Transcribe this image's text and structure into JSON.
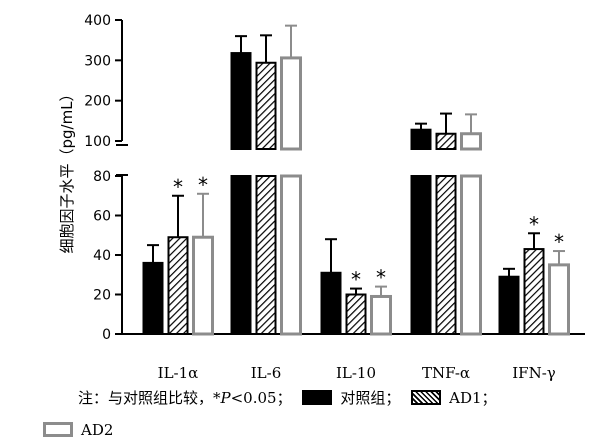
{
  "chart_data": {
    "type": "bar",
    "ylabel": "细胞因子水平（pg/mL）",
    "categories": [
      "IL-1α",
      "IL-6",
      "IL-10",
      "TNF-α",
      "IFN-γ"
    ],
    "y_axis_lower": {
      "range": [
        0,
        80
      ],
      "ticks": [
        "0",
        "20",
        "40",
        "60",
        "80"
      ]
    },
    "y_axis_upper": {
      "range": [
        100,
        400
      ],
      "ticks": [
        "100",
        "200",
        "300",
        "400"
      ]
    },
    "axis_break": true,
    "series": [
      {
        "name": "对照组",
        "color": "#000000",
        "fill": "solid",
        "values": [
          36,
          318,
          31,
          128,
          29
        ],
        "errors": [
          9,
          42,
          17,
          15,
          4
        ]
      },
      {
        "name": "AD1",
        "color": "#000000",
        "fill": "hatched",
        "values": [
          49,
          294,
          20,
          118,
          43
        ],
        "errors": [
          21,
          68,
          3,
          50,
          8
        ]
      },
      {
        "name": "AD2",
        "color": "#8c8c8c",
        "fill": "outline",
        "values": [
          49,
          306,
          19,
          118,
          35
        ],
        "errors": [
          22,
          80,
          5,
          48,
          7
        ]
      }
    ],
    "significance": [
      {
        "category": "IL-1α",
        "series": "AD1",
        "mark": "*"
      },
      {
        "category": "IL-1α",
        "series": "AD2",
        "mark": "*"
      },
      {
        "category": "IL-10",
        "series": "AD1",
        "mark": "*"
      },
      {
        "category": "IL-10",
        "series": "AD2",
        "mark": "*"
      },
      {
        "category": "IFN-γ",
        "series": "AD1",
        "mark": "*"
      },
      {
        "category": "IFN-γ",
        "series": "AD2",
        "mark": "*"
      }
    ]
  },
  "note": {
    "prefix": "注：与对照组比较，",
    "p_text": "*P",
    "p_rest": "<0.05；",
    "legend": [
      "对照组；",
      "AD1；",
      "AD2"
    ]
  }
}
